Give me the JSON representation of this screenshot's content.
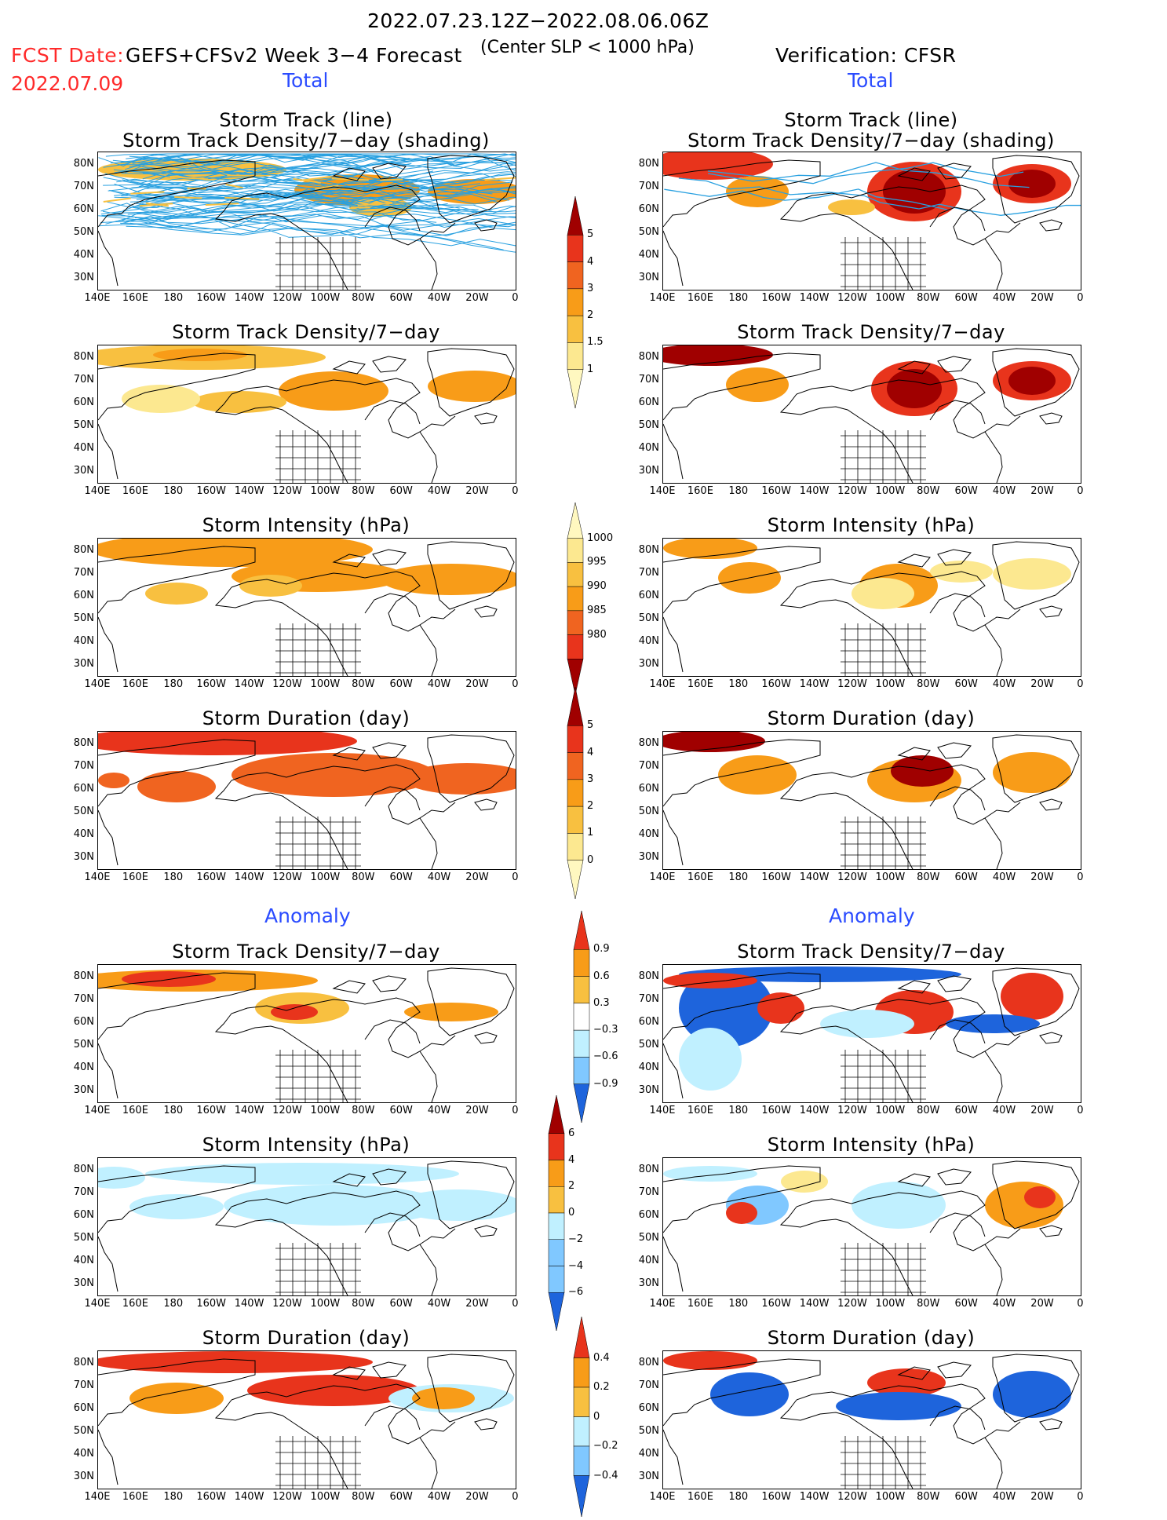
{
  "header": {
    "date_range": "2022.07.23.12Z−2022.08.06.06Z",
    "fcst_label": "FCST Date:",
    "fcst_date": "2022.07.09",
    "model": "GEFS+CFSv2 Week 3−4 Forecast",
    "criterion": "(Center SLP < 1000 hPa)",
    "verification": "Verification: CFSR"
  },
  "sections": {
    "total": "Total",
    "anomaly": "Anomaly"
  },
  "axes": {
    "lat_labels": [
      "80N",
      "70N",
      "60N",
      "50N",
      "40N",
      "30N"
    ],
    "lon_labels": [
      "140E",
      "160E",
      "180",
      "160W",
      "140W",
      "120W",
      "100W",
      "80W",
      "60W",
      "40W",
      "20W",
      "0"
    ]
  },
  "panel_titles": {
    "track_line": "Storm Track (line)",
    "track_shading": "Storm Track Density/7−day (shading)",
    "density": "Storm Track Density/7−day",
    "intensity": "Storm Intensity (hPa)",
    "duration": "Storm Duration (day)"
  },
  "colorbars": {
    "density_total": [
      "5",
      "4",
      "3",
      "2",
      "1.5",
      "1"
    ],
    "intensity_total": [
      "1000",
      "995",
      "990",
      "985",
      "980"
    ],
    "duration_total": [
      "5",
      "4",
      "3",
      "2",
      "1",
      "0"
    ],
    "density_anom": [
      "0.9",
      "0.6",
      "0.3",
      "−0.3",
      "−0.6",
      "−0.9"
    ],
    "intensity_anom": [
      "6",
      "4",
      "2",
      "0",
      "−2",
      "−4",
      "−6"
    ],
    "duration_anom": [
      "0.4",
      "0.2",
      "0",
      "−0.2",
      "−0.4"
    ]
  },
  "colors": {
    "dark_red": "#a00000",
    "red": "#e8341c",
    "orange_red": "#f06420",
    "orange": "#f89c18",
    "light_orange": "#f8c040",
    "yellow": "#fce890",
    "pale_yellow": "#fff8c0",
    "light_blue": "#c0f0ff",
    "sky_blue": "#80c8ff",
    "blue": "#1e64dc",
    "track_line": "#28a0e0"
  }
}
